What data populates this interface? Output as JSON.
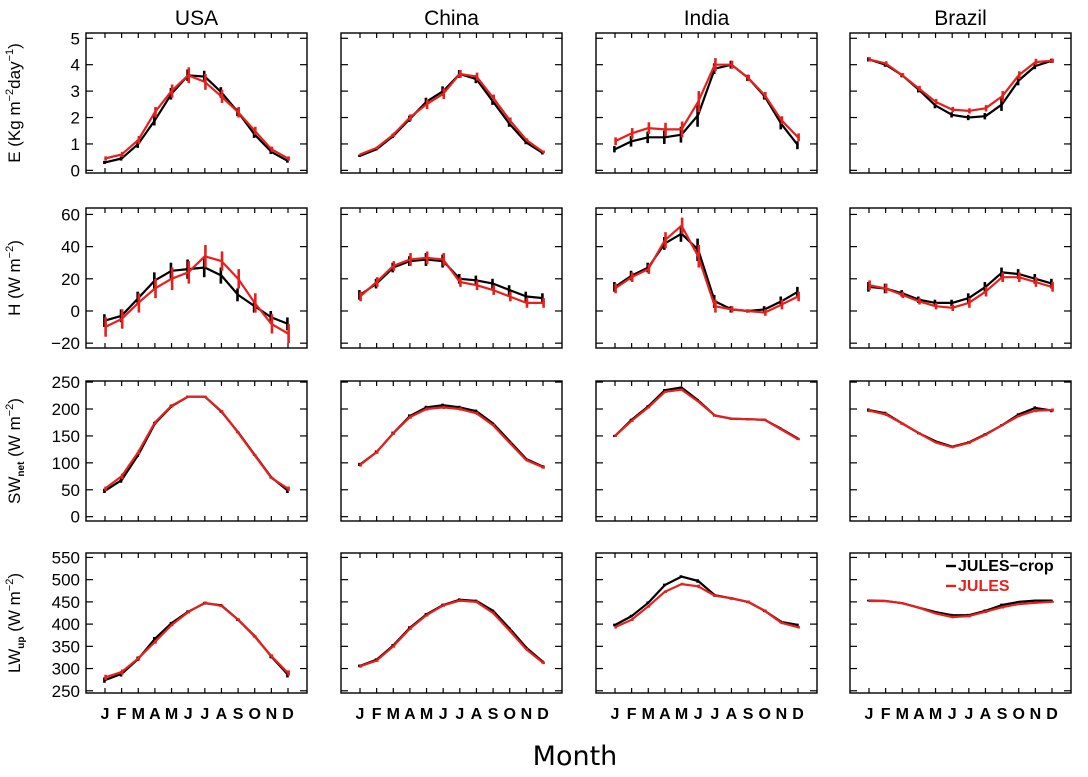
{
  "chart_data": {
    "type": "line",
    "layout": "4x4 grid of line panels with error bars",
    "columns": [
      "USA",
      "China",
      "India",
      "Brazil"
    ],
    "xlabel": "Month",
    "months": [
      "J",
      "F",
      "M",
      "A",
      "M",
      "J",
      "J",
      "A",
      "S",
      "O",
      "N",
      "D"
    ],
    "legend": {
      "placement": "top-right of bottom-right panel",
      "entries": [
        "JULES−crop",
        "JULES"
      ]
    },
    "series_colors": {
      "JULES−crop": "#000000",
      "JULES": "#e8201c"
    },
    "rows": [
      {
        "variable": "E",
        "ylabel": {
          "main": "E  (Kg m",
          "sup1": "−2",
          "mid": "day",
          "sup2": "−1",
          "end": ")"
        },
        "ylim": [
          -0.1,
          5.2
        ],
        "yticks": [
          0,
          1,
          2,
          3,
          4,
          5
        ],
        "panels": {
          "USA": {
            "JULES−crop": [
              0.3,
              0.45,
              1.0,
              1.9,
              2.9,
              3.6,
              3.55,
              2.95,
              2.2,
              1.35,
              0.7,
              0.35
            ],
            "JULES": [
              0.45,
              0.6,
              1.15,
              2.2,
              3.0,
              3.6,
              3.35,
              2.8,
              2.2,
              1.5,
              0.8,
              0.45
            ],
            "err_crop": [
              0.06,
              0.08,
              0.15,
              0.2,
              0.22,
              0.22,
              0.22,
              0.2,
              0.15,
              0.12,
              0.08,
              0.06
            ],
            "err_jules": [
              0.08,
              0.1,
              0.15,
              0.2,
              0.25,
              0.3,
              0.3,
              0.25,
              0.2,
              0.15,
              0.1,
              0.08
            ]
          },
          "China": {
            "JULES−crop": [
              0.55,
              0.8,
              1.3,
              1.95,
              2.6,
              3.0,
              3.65,
              3.45,
              2.6,
              1.75,
              1.05,
              0.65
            ],
            "JULES": [
              0.6,
              0.85,
              1.35,
              2.0,
              2.5,
              2.9,
              3.65,
              3.55,
              2.75,
              1.9,
              1.15,
              0.7
            ],
            "err_crop": [
              0.04,
              0.05,
              0.08,
              0.12,
              0.15,
              0.18,
              0.15,
              0.15,
              0.12,
              0.1,
              0.06,
              0.05
            ],
            "err_jules": [
              0.04,
              0.05,
              0.08,
              0.12,
              0.18,
              0.2,
              0.15,
              0.15,
              0.12,
              0.1,
              0.06,
              0.05
            ]
          },
          "India": {
            "JULES−crop": [
              0.8,
              1.1,
              1.25,
              1.25,
              1.35,
              2.1,
              3.85,
              4.0,
              3.5,
              2.8,
              1.75,
              0.95
            ],
            "JULES": [
              1.1,
              1.4,
              1.6,
              1.55,
              1.55,
              2.6,
              4.0,
              4.0,
              3.5,
              2.85,
              1.9,
              1.25
            ],
            "err_crop": [
              0.12,
              0.2,
              0.22,
              0.25,
              0.3,
              0.45,
              0.2,
              0.15,
              0.12,
              0.12,
              0.2,
              0.15
            ],
            "err_jules": [
              0.15,
              0.2,
              0.22,
              0.25,
              0.3,
              0.4,
              0.25,
              0.15,
              0.12,
              0.12,
              0.15,
              0.15
            ]
          },
          "Brazil": {
            "JULES−crop": [
              4.2,
              4.0,
              3.6,
              3.05,
              2.45,
              2.1,
              2.0,
              2.05,
              2.5,
              3.4,
              3.95,
              4.15
            ],
            "JULES": [
              4.2,
              4.05,
              3.6,
              3.1,
              2.6,
              2.3,
              2.25,
              2.35,
              2.8,
              3.6,
              4.1,
              4.15
            ],
            "err_crop": [
              0.08,
              0.08,
              0.08,
              0.1,
              0.1,
              0.1,
              0.1,
              0.12,
              0.25,
              0.18,
              0.12,
              0.08
            ],
            "err_jules": [
              0.08,
              0.08,
              0.08,
              0.1,
              0.1,
              0.1,
              0.1,
              0.12,
              0.2,
              0.15,
              0.12,
              0.08
            ]
          }
        }
      },
      {
        "variable": "H",
        "ylabel": {
          "main": "H  (W m",
          "sup1": "−2",
          "end": ")"
        },
        "ylim": [
          -23,
          64
        ],
        "yticks": [
          -20,
          0,
          20,
          40,
          60
        ],
        "panels": {
          "USA": {
            "JULES−crop": [
              -6,
              -3,
              8,
              19,
              25,
              26,
              27,
              22,
              10,
              3,
              -4,
              -8
            ],
            "JULES": [
              -10,
              -5,
              5,
              14,
              20,
              24,
              34,
              31,
              20,
              5,
              -8,
              -14
            ],
            "err_crop": [
              4,
              4,
              4,
              5,
              5,
              6,
              6,
              5,
              4,
              4,
              4,
              4
            ],
            "err_jules": [
              6,
              6,
              6,
              6,
              7,
              7,
              7,
              6,
              6,
              6,
              6,
              6
            ]
          },
          "China": {
            "JULES−crop": [
              10,
              17,
              27,
              31,
              32,
              31,
              20,
              19,
              17,
              13,
              9,
              8
            ],
            "JULES": [
              9,
              18,
              28,
              32,
              33,
              32,
              18,
              16,
              13,
              9,
              5,
              5
            ],
            "err_crop": [
              3,
              3,
              3,
              3,
              4,
              4,
              3,
              3,
              3,
              3,
              3,
              3
            ],
            "err_jules": [
              3,
              3,
              3,
              4,
              4,
              4,
              3,
              3,
              3,
              3,
              3,
              3
            ]
          },
          "India": {
            "JULES−crop": [
              15,
              22,
              27,
              42,
              48,
              38,
              6,
              1,
              0,
              1,
              6,
              12
            ],
            "JULES": [
              14,
              21,
              26,
              44,
              53,
              34,
              3,
              1,
              0,
              -1,
              4,
              9
            ],
            "err_crop": [
              3,
              3,
              3,
              4,
              5,
              7,
              4,
              2,
              1,
              2,
              3,
              3
            ],
            "err_jules": [
              3,
              3,
              3,
              5,
              5,
              7,
              4,
              2,
              1,
              2,
              3,
              3
            ]
          },
          "Brazil": {
            "JULES−crop": [
              15,
              14,
              11,
              7,
              5,
              5,
              8,
              15,
              24,
              23,
              20,
              17
            ],
            "JULES": [
              16,
              14,
              10,
              6,
              3,
              2,
              5,
              12,
              21,
              21,
              18,
              15
            ],
            "err_crop": [
              3,
              3,
              2,
              2,
              2,
              2,
              3,
              3,
              3,
              3,
              3,
              3
            ],
            "err_jules": [
              3,
              3,
              2,
              2,
              2,
              2,
              3,
              3,
              3,
              3,
              3,
              3
            ]
          }
        }
      },
      {
        "variable": "SW_net",
        "ylabel": {
          "main": "SW",
          "sub": "net",
          "rest": "  (W m",
          "sup1": "−2",
          "end": ")"
        },
        "ylim": [
          -8,
          252
        ],
        "yticks": [
          0,
          50,
          100,
          150,
          200,
          250
        ],
        "panels": {
          "USA": {
            "JULES−crop": [
              48,
              68,
              115,
              173,
              205,
              223,
              223,
              195,
              157,
              115,
              73,
              48
            ],
            "JULES": [
              52,
              75,
              120,
              175,
              206,
              223,
              223,
              196,
              156,
              114,
              72,
              52
            ],
            "err_crop": [
              4,
              5,
              4,
              3,
              3,
              2,
              2,
              2,
              2,
              2,
              2,
              4
            ],
            "err_jules": [
              4,
              5,
              4,
              3,
              3,
              2,
              2,
              2,
              2,
              2,
              2,
              4
            ]
          },
          "China": {
            "JULES−crop": [
              97,
              120,
              155,
              187,
              203,
              207,
              203,
              196,
              173,
              140,
              107,
              93
            ],
            "JULES": [
              96,
              120,
              155,
              185,
              200,
              203,
              200,
              192,
              170,
              137,
              105,
              92
            ],
            "err_crop": [
              3,
              3,
              3,
              3,
              3,
              3,
              3,
              3,
              2,
              2,
              2,
              3
            ],
            "err_jules": [
              3,
              3,
              3,
              3,
              3,
              3,
              3,
              3,
              2,
              2,
              2,
              3
            ]
          },
          "India": {
            "JULES−crop": [
              150,
              180,
              205,
              235,
              240,
              216,
              188,
              182,
              181,
              180,
              163,
              145
            ],
            "JULES": [
              150,
              178,
              203,
              232,
              236,
              214,
              188,
              182,
              181,
              180,
              162,
              144
            ],
            "err_crop": [
              2,
              2,
              2,
              2,
              2,
              2,
              2,
              2,
              2,
              2,
              2,
              2
            ],
            "err_jules": [
              2,
              2,
              2,
              2,
              2,
              2,
              2,
              2,
              2,
              2,
              2,
              2
            ]
          },
          "Brazil": {
            "JULES−crop": [
              198,
              192,
              173,
              155,
              140,
              130,
              138,
              153,
              170,
              190,
              202,
              197
            ],
            "JULES": [
              197,
              190,
              173,
              155,
              138,
              129,
              137,
              152,
              170,
              187,
              197,
              198
            ],
            "err_crop": [
              3,
              3,
              2,
              2,
              2,
              2,
              2,
              2,
              2,
              2,
              3,
              3
            ],
            "err_jules": [
              3,
              3,
              2,
              2,
              2,
              2,
              2,
              2,
              2,
              2,
              3,
              3
            ]
          }
        }
      },
      {
        "variable": "LW_up",
        "ylabel": {
          "main": "LW",
          "sub": "up",
          "rest": "  (W m",
          "sup1": "−2",
          "end": ")"
        },
        "ylim": [
          245,
          560
        ],
        "yticks": [
          250,
          300,
          350,
          400,
          450,
          500,
          550
        ],
        "panels": {
          "USA": {
            "JULES−crop": [
              274,
              288,
              322,
              367,
              402,
              428,
              447,
              442,
              410,
              373,
              327,
              286
            ],
            "JULES": [
              280,
              292,
              323,
              360,
              398,
              427,
              448,
              441,
              410,
              372,
              328,
              290
            ],
            "err_crop": [
              6,
              6,
              5,
              4,
              3,
              3,
              3,
              3,
              3,
              3,
              4,
              6
            ],
            "err_jules": [
              6,
              6,
              5,
              4,
              3,
              3,
              3,
              3,
              3,
              3,
              4,
              6
            ]
          },
          "China": {
            "JULES−crop": [
              306,
              320,
              352,
              392,
              422,
              443,
              455,
              452,
              430,
              390,
              347,
              315
            ],
            "JULES": [
              305,
              318,
              350,
              390,
              420,
              442,
              453,
              450,
              425,
              385,
              343,
              313
            ],
            "err_crop": [
              3,
              3,
              3,
              3,
              3,
              3,
              3,
              3,
              3,
              3,
              3,
              3
            ],
            "err_jules": [
              3,
              3,
              3,
              3,
              3,
              3,
              3,
              3,
              3,
              3,
              3,
              3
            ]
          },
          "India": {
            "JULES−crop": [
              398,
              418,
              448,
              488,
              507,
              497,
              465,
              458,
              450,
              430,
              405,
              398
            ],
            "JULES": [
              393,
              410,
              440,
              473,
              490,
              485,
              464,
              458,
              450,
              430,
              403,
              393
            ],
            "err_crop": [
              3,
              3,
              3,
              3,
              3,
              4,
              3,
              3,
              3,
              3,
              3,
              3
            ],
            "err_jules": [
              3,
              3,
              3,
              3,
              3,
              4,
              3,
              3,
              3,
              3,
              3,
              3
            ]
          },
          "Brazil": {
            "JULES−crop": [
              453,
              452,
              447,
              437,
              427,
              420,
              420,
              430,
              443,
              450,
              453,
              453
            ],
            "JULES": [
              452,
              452,
              447,
              437,
              424,
              416,
              418,
              428,
              438,
              445,
              448,
              450
            ],
            "err_crop": [
              2,
              2,
              2,
              2,
              2,
              3,
              3,
              3,
              3,
              2,
              2,
              2
            ],
            "err_jules": [
              2,
              2,
              2,
              2,
              2,
              3,
              3,
              3,
              3,
              2,
              2,
              2
            ]
          }
        }
      }
    ]
  }
}
